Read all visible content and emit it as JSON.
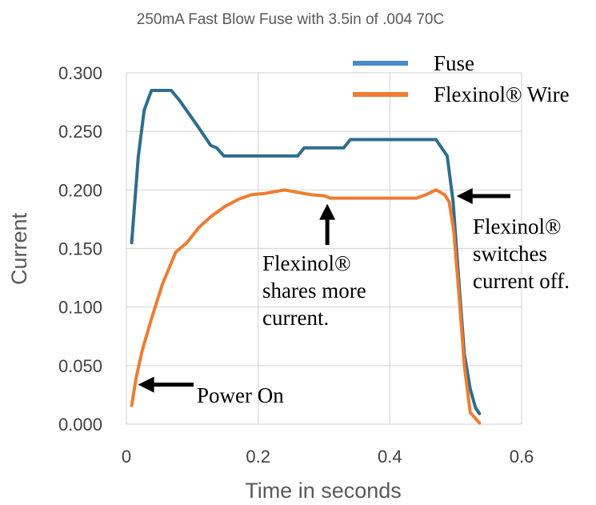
{
  "chart_data": {
    "type": "line",
    "title": "250mA Fast Blow Fuse with 3.5in of .004 70C",
    "xlabel": "Time in seconds",
    "ylabel": "Current",
    "xlim": [
      0,
      0.6
    ],
    "ylim": [
      0,
      0.3
    ],
    "x_ticks": [
      "0",
      "0.2",
      "0.4",
      "0.6"
    ],
    "x_tick_values": [
      0,
      0.2,
      0.4,
      0.6
    ],
    "y_ticks": [
      "0.000",
      "0.050",
      "0.100",
      "0.150",
      "0.200",
      "0.250",
      "0.300"
    ],
    "y_tick_values": [
      0,
      0.05,
      0.1,
      0.15,
      0.2,
      0.25,
      0.3
    ],
    "grid": "vertical and horizontal",
    "legend_position": "top-right",
    "series": [
      {
        "name": "Fuse",
        "color": "#2e6e8e",
        "legend_color": "#4a8bc9",
        "points": [
          [
            0.008,
            0.155
          ],
          [
            0.018,
            0.228
          ],
          [
            0.027,
            0.268
          ],
          [
            0.038,
            0.285
          ],
          [
            0.048,
            0.285
          ],
          [
            0.058,
            0.285
          ],
          [
            0.068,
            0.285
          ],
          [
            0.08,
            0.277
          ],
          [
            0.095,
            0.265
          ],
          [
            0.11,
            0.253
          ],
          [
            0.128,
            0.238
          ],
          [
            0.137,
            0.236
          ],
          [
            0.148,
            0.229
          ],
          [
            0.165,
            0.229
          ],
          [
            0.19,
            0.229
          ],
          [
            0.23,
            0.229
          ],
          [
            0.26,
            0.229
          ],
          [
            0.27,
            0.236
          ],
          [
            0.3,
            0.236
          ],
          [
            0.33,
            0.236
          ],
          [
            0.34,
            0.243
          ],
          [
            0.38,
            0.243
          ],
          [
            0.42,
            0.243
          ],
          [
            0.47,
            0.243
          ],
          [
            0.487,
            0.229
          ],
          [
            0.496,
            0.19
          ],
          [
            0.505,
            0.12
          ],
          [
            0.513,
            0.06
          ],
          [
            0.522,
            0.03
          ],
          [
            0.53,
            0.014
          ],
          [
            0.536,
            0.009
          ]
        ]
      },
      {
        "name": "Flexinol® Wire",
        "color": "#ed7d31",
        "legend_color": "#ed7d31",
        "points": [
          [
            0.008,
            0.016
          ],
          [
            0.015,
            0.04
          ],
          [
            0.024,
            0.063
          ],
          [
            0.038,
            0.09
          ],
          [
            0.055,
            0.12
          ],
          [
            0.075,
            0.147
          ],
          [
            0.092,
            0.155
          ],
          [
            0.11,
            0.168
          ],
          [
            0.13,
            0.178
          ],
          [
            0.15,
            0.186
          ],
          [
            0.17,
            0.192
          ],
          [
            0.19,
            0.196
          ],
          [
            0.21,
            0.197
          ],
          [
            0.24,
            0.2
          ],
          [
            0.26,
            0.198
          ],
          [
            0.28,
            0.196
          ],
          [
            0.3,
            0.195
          ],
          [
            0.31,
            0.193
          ],
          [
            0.33,
            0.193
          ],
          [
            0.35,
            0.193
          ],
          [
            0.38,
            0.193
          ],
          [
            0.42,
            0.193
          ],
          [
            0.44,
            0.193
          ],
          [
            0.455,
            0.196
          ],
          [
            0.47,
            0.2
          ],
          [
            0.483,
            0.196
          ],
          [
            0.49,
            0.19
          ],
          [
            0.497,
            0.165
          ],
          [
            0.505,
            0.11
          ],
          [
            0.513,
            0.05
          ],
          [
            0.522,
            0.01
          ],
          [
            0.536,
            0.001
          ]
        ]
      }
    ],
    "annotations": [
      {
        "id": "power-on",
        "lines": [
          "Power On"
        ],
        "arrow": "left",
        "target": [
          0.008,
          0.016
        ]
      },
      {
        "id": "shares",
        "lines": [
          "Flexinol®",
          "shares more",
          "current."
        ],
        "arrow": "up",
        "target": [
          0.305,
          0.193
        ]
      },
      {
        "id": "switches",
        "lines": [
          "Flexinol®",
          "switches",
          "current off."
        ],
        "arrow": "left",
        "target": [
          0.494,
          0.194
        ]
      }
    ]
  }
}
